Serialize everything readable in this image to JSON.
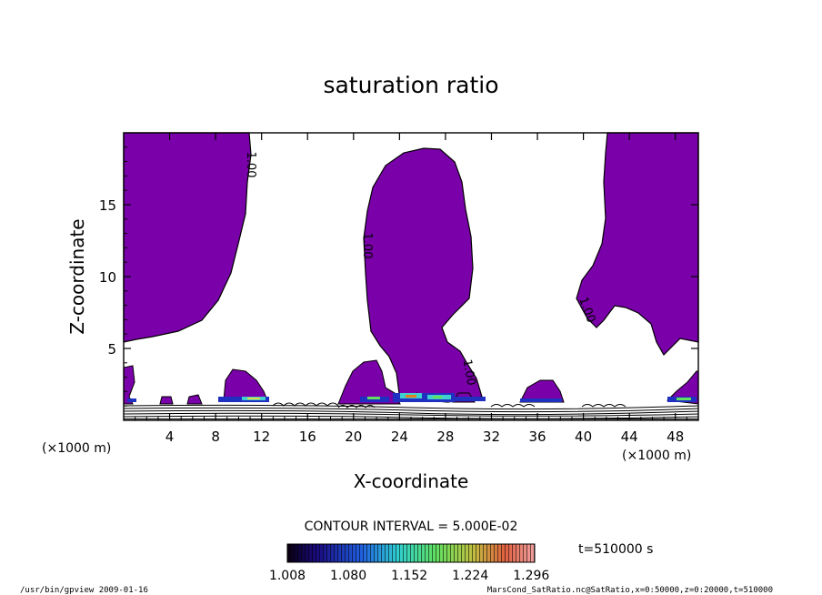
{
  "chart_data": {
    "type": "heatmap",
    "title": "saturation ratio",
    "xlabel": "X-coordinate",
    "ylabel": "Z-coordinate",
    "x_unit": "(×1000 m)",
    "x_ticks": [
      4,
      8,
      12,
      16,
      20,
      24,
      28,
      32,
      36,
      40,
      44,
      48
    ],
    "y_ticks": [
      5,
      10,
      15
    ],
    "xlim": [
      0,
      50
    ],
    "ylim": [
      0,
      20
    ],
    "contour_interval": "CONTOUR INTERVAL = 5.000E-02",
    "contour_label": "1.00",
    "time_label": "t=510000 s",
    "colorbar": {
      "ticks": [
        "1.008",
        "1.080",
        "1.152",
        "1.224",
        "1.296"
      ],
      "range": [
        1.008,
        1.3
      ]
    },
    "regions": [
      {
        "name": "left-region",
        "x": [
          0,
          11
        ],
        "z": [
          5.5,
          20
        ]
      },
      {
        "name": "central-plume",
        "x": [
          19,
          30
        ],
        "z": [
          1,
          18.7
        ]
      },
      {
        "name": "right-region",
        "x": [
          41.5,
          50
        ],
        "z": [
          5.5,
          20
        ]
      }
    ]
  },
  "footer": {
    "left": "/usr/bin/gpview   2009-01-16",
    "right": "MarsCond_SatRatio.nc@SatRatio,x=0:50000,z=0:20000,t=510000"
  },
  "colors": {
    "fill": "#7a00aa",
    "outline": "#000000"
  }
}
